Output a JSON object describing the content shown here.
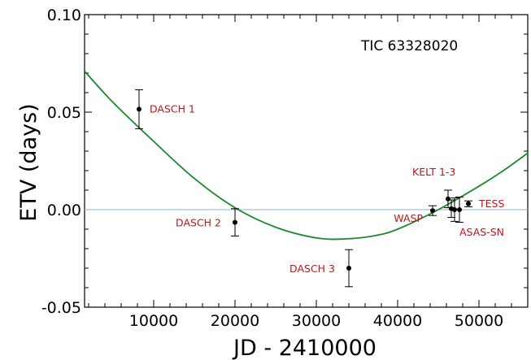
{
  "chart_data": {
    "type": "scatter",
    "title": "",
    "xlabel": "JD - 2410000",
    "ylabel": "ETV (days)",
    "xlim": [
      1500,
      56000
    ],
    "ylim": [
      -0.05,
      0.1
    ],
    "x_ticks": [
      10000,
      20000,
      30000,
      40000,
      50000
    ],
    "y_ticks": [
      -0.05,
      0.0,
      0.05,
      0.1
    ],
    "x_tick_labels": [
      "10000",
      "20000",
      "30000",
      "40000",
      "50000"
    ],
    "y_tick_labels": [
      "-0.05",
      "0.00",
      "0.05",
      "0.10"
    ],
    "annotation": "TIC 63328020",
    "grid": false,
    "reference_line": {
      "y": 0.0,
      "color": "#8fb2d6"
    },
    "colors": {
      "points": "#000000",
      "labels": "#c0161b",
      "fit": "#1a8a2e"
    },
    "fit_curve": {
      "type": "quadratic",
      "x": [
        1500,
        5000,
        10000,
        15000,
        20000,
        25000,
        30000,
        33500,
        37000,
        40000,
        45000,
        50000,
        53000,
        56000
      ],
      "y": [
        0.071,
        0.055,
        0.035,
        0.016,
        0.001,
        -0.009,
        -0.0145,
        -0.015,
        -0.0135,
        -0.01,
        0.0,
        0.012,
        0.02,
        0.029
      ]
    },
    "points": [
      {
        "label": "DASCH 1",
        "x": 8200,
        "y": 0.0515,
        "err": 0.01,
        "label_pos": "right"
      },
      {
        "label": "DASCH 2",
        "x": 20000,
        "y": -0.0065,
        "err": 0.007,
        "label_pos": "left"
      },
      {
        "label": "DASCH 3",
        "x": 34000,
        "y": -0.03,
        "err": 0.0095,
        "label_pos": "left"
      },
      {
        "label": "WASP",
        "x": 44300,
        "y": -0.0005,
        "err": 0.0025,
        "label_pos": "left-below"
      },
      {
        "label": "KELT 1-3",
        "x": 46200,
        "y": 0.0055,
        "err": 0.0045,
        "label_pos": "above"
      },
      {
        "label": "",
        "x": 46600,
        "y": 0.0005,
        "err": 0.0045,
        "label_pos": "none"
      },
      {
        "label": "",
        "x": 47000,
        "y": 0.0,
        "err": 0.006,
        "label_pos": "none"
      },
      {
        "label": "ASAS-SN",
        "x": 47600,
        "y": 0.0,
        "err": 0.0065,
        "label_pos": "below-right"
      },
      {
        "label": "TESS",
        "x": 48700,
        "y": 0.003,
        "err": 0.0015,
        "label_pos": "right"
      }
    ]
  }
}
